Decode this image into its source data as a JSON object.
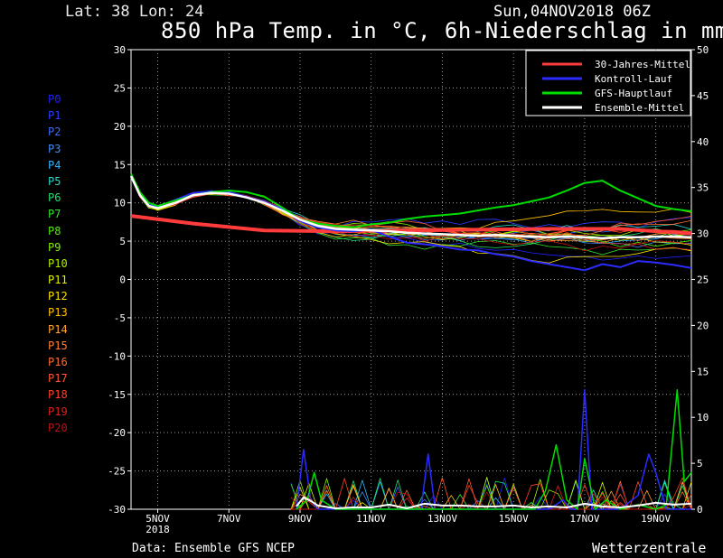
{
  "header": {
    "location": "Lat: 38 Lon: 24",
    "run": "Sun,04NOV2018 06Z",
    "title": "850 hPa Temp. in °C, 6h-Niederschlag in mm"
  },
  "footer": {
    "source": "Data: Ensemble GFS NCEP",
    "brand": "Wetterzentrale"
  },
  "members": [
    {
      "name": "P0",
      "color": "#2020ff"
    },
    {
      "name": "P1",
      "color": "#2a3cff"
    },
    {
      "name": "P2",
      "color": "#3a6cff"
    },
    {
      "name": "P3",
      "color": "#3c8cff"
    },
    {
      "name": "P4",
      "color": "#30b4ff"
    },
    {
      "name": "P5",
      "color": "#28d8c8"
    },
    {
      "name": "P6",
      "color": "#20e070"
    },
    {
      "name": "P7",
      "color": "#30e830"
    },
    {
      "name": "P8",
      "color": "#50f000"
    },
    {
      "name": "P9",
      "color": "#80f000"
    },
    {
      "name": "P10",
      "color": "#b0f000"
    },
    {
      "name": "P11",
      "color": "#e0f000"
    },
    {
      "name": "P12",
      "color": "#f8e000"
    },
    {
      "name": "P13",
      "color": "#ffc000"
    },
    {
      "name": "P14",
      "color": "#ffa030"
    },
    {
      "name": "P15",
      "color": "#ff8030"
    },
    {
      "name": "P16",
      "color": "#ff6a30"
    },
    {
      "name": "P17",
      "color": "#ff5530"
    },
    {
      "name": "P18",
      "color": "#ff4020"
    },
    {
      "name": "P19",
      "color": "#e02020"
    },
    {
      "name": "P20",
      "color": "#c01010"
    }
  ],
  "chart_data": {
    "type": "line",
    "title": "850 hPa Temp. in °C, 6h-Niederschlag in mm",
    "x_ticks": [
      {
        "label": "5NOV",
        "sub": "2018",
        "day": 5
      },
      {
        "label": "7NOV",
        "day": 7
      },
      {
        "label": "9NOV",
        "day": 9
      },
      {
        "label": "11NOV",
        "day": 11
      },
      {
        "label": "13NOV",
        "day": 13
      },
      {
        "label": "15NOV",
        "day": 15
      },
      {
        "label": "17NOV",
        "day": 17
      },
      {
        "label": "19NOV",
        "day": 19
      }
    ],
    "x_range_day": [
      4.25,
      20.0
    ],
    "y_left": {
      "min": -30,
      "max": 30,
      "ticks": [
        30,
        25,
        20,
        15,
        10,
        5,
        0,
        -5,
        -10,
        -15,
        -20,
        -25,
        -30
      ]
    },
    "y_right": {
      "min": 0,
      "max": 50,
      "ticks": [
        50,
        45,
        40,
        35,
        30,
        25,
        20,
        15,
        10,
        5,
        0
      ]
    },
    "grid": true,
    "legend": {
      "placement": "top-right",
      "entries": [
        {
          "name": "30-Jahres-Mittel",
          "color": "#ff3b3b"
        },
        {
          "name": "Kontroll-Lauf",
          "color": "#2b2bff"
        },
        {
          "name": "GFS-Hauptlauf",
          "color": "#00dd00"
        },
        {
          "name": "Ensemble-Mittel",
          "color": "#ffffff"
        }
      ]
    },
    "climate_mean": {
      "day": [
        4.25,
        6,
        8,
        10,
        12,
        14,
        16,
        18,
        20
      ],
      "temp": [
        8.3,
        7.3,
        6.4,
        6.3,
        6.4,
        6.5,
        6.6,
        6.6,
        6.0
      ]
    },
    "ensemble_mean": {
      "day": [
        4.25,
        4.5,
        4.75,
        5,
        5.5,
        6,
        6.5,
        7,
        7.5,
        8,
        8.5,
        9,
        9.5,
        10,
        10.5,
        11,
        11.5,
        12,
        12.5,
        13,
        13.5,
        14,
        14.5,
        15,
        15.5,
        16,
        16.5,
        17,
        17.5,
        18,
        18.5,
        19,
        19.5,
        20
      ],
      "temp": [
        13.5,
        11,
        9.6,
        9.3,
        10,
        11,
        11.3,
        11.2,
        10.7,
        10,
        9,
        7.8,
        7,
        6.6,
        6.5,
        6.4,
        6.3,
        6.1,
        6,
        5.9,
        5.8,
        5.7,
        5.8,
        5.7,
        5.6,
        5.5,
        5.6,
        5.5,
        5.4,
        5.5,
        5.5,
        5.6,
        5.6,
        5.5
      ]
    },
    "control_run": {
      "day": [
        4.25,
        4.5,
        4.75,
        5,
        5.5,
        6,
        6.5,
        7,
        7.5,
        8,
        8.5,
        9,
        9.5,
        10,
        10.5,
        11,
        11.5,
        12,
        12.5,
        13,
        13.5,
        14,
        14.5,
        15,
        15.5,
        16,
        16.5,
        17,
        17.5,
        18,
        18.5,
        19,
        19.5,
        20
      ],
      "temp": [
        13.5,
        11.2,
        9.8,
        9.5,
        10.4,
        11.3,
        11.5,
        11.4,
        10.8,
        10.1,
        9.2,
        7.6,
        6.8,
        6.4,
        6.3,
        6.5,
        5.6,
        4.8,
        4.6,
        4.3,
        3.9,
        3.8,
        3.3,
        3.0,
        2.4,
        2.0,
        1.6,
        1.2,
        2.0,
        1.6,
        2.4,
        2.2,
        1.9,
        1.5
      ]
    },
    "gfs_main_run": {
      "day": [
        4.25,
        4.5,
        4.75,
        5,
        5.5,
        6,
        6.5,
        7,
        7.5,
        8,
        8.5,
        9,
        9.5,
        10,
        10.5,
        11,
        11.5,
        12,
        12.5,
        13,
        13.5,
        14,
        14.5,
        15,
        15.5,
        16,
        16.5,
        17,
        17.5,
        18,
        18.5,
        19,
        19.5,
        20
      ],
      "temp": [
        13.8,
        11.4,
        10.0,
        9.6,
        10.3,
        11.0,
        11.4,
        11.6,
        11.4,
        10.8,
        9.4,
        7.8,
        7.3,
        7.0,
        6.8,
        7.2,
        7.4,
        7.9,
        8.2,
        8.4,
        8.6,
        9.0,
        9.4,
        9.7,
        10.2,
        10.7,
        11.6,
        12.6,
        12.9,
        11.6,
        10.6,
        9.6,
        9.2,
        8.9
      ]
    },
    "ensemble_precip": {
      "day": [
        8.9,
        9.1,
        9.3,
        9.5,
        10,
        10.5,
        11,
        11.5,
        12,
        12.5,
        13,
        13.5,
        14,
        14.5,
        15,
        15.5,
        16,
        16.5,
        17,
        17.5,
        18,
        18.5,
        19,
        19.5,
        20
      ],
      "precip": [
        0.3,
        1.3,
        0.9,
        0.4,
        0.1,
        0.2,
        0.2,
        0.5,
        0.1,
        0.6,
        0.4,
        0.4,
        0.3,
        0.3,
        0.4,
        0.2,
        0.3,
        0.2,
        0.6,
        0.3,
        0.2,
        0.4,
        0.7,
        0.5,
        0.6
      ]
    },
    "control_precip": {
      "day": [
        8.9,
        9.1,
        9.3,
        9.5,
        10,
        11,
        12.4,
        12.6,
        12.8,
        13,
        14,
        15,
        16,
        16.4,
        16.6,
        16.8,
        17,
        17.2,
        17.5,
        18,
        18.5,
        18.8,
        19,
        19.3,
        19.6,
        20
      ],
      "precip": [
        0,
        6.5,
        1,
        0,
        0,
        0,
        0,
        6,
        0,
        0,
        0,
        0,
        0,
        1,
        0,
        0,
        13,
        0,
        0,
        0,
        1.5,
        6,
        4,
        0,
        0,
        0
      ]
    },
    "gfs_precip": {
      "day": [
        8.9,
        9.2,
        9.4,
        9.6,
        10,
        11,
        12,
        13,
        14,
        15,
        15.6,
        15.9,
        16.2,
        16.5,
        16.8,
        17,
        17.3,
        17.6,
        18,
        18.5,
        19,
        19.3,
        19.6,
        19.8,
        20
      ],
      "precip": [
        0,
        1,
        4,
        1,
        0,
        0,
        0,
        0,
        0,
        0,
        0,
        2,
        7,
        1,
        0,
        5.5,
        0,
        1,
        0,
        0.5,
        0,
        0.5,
        13,
        3,
        4
      ]
    }
  }
}
